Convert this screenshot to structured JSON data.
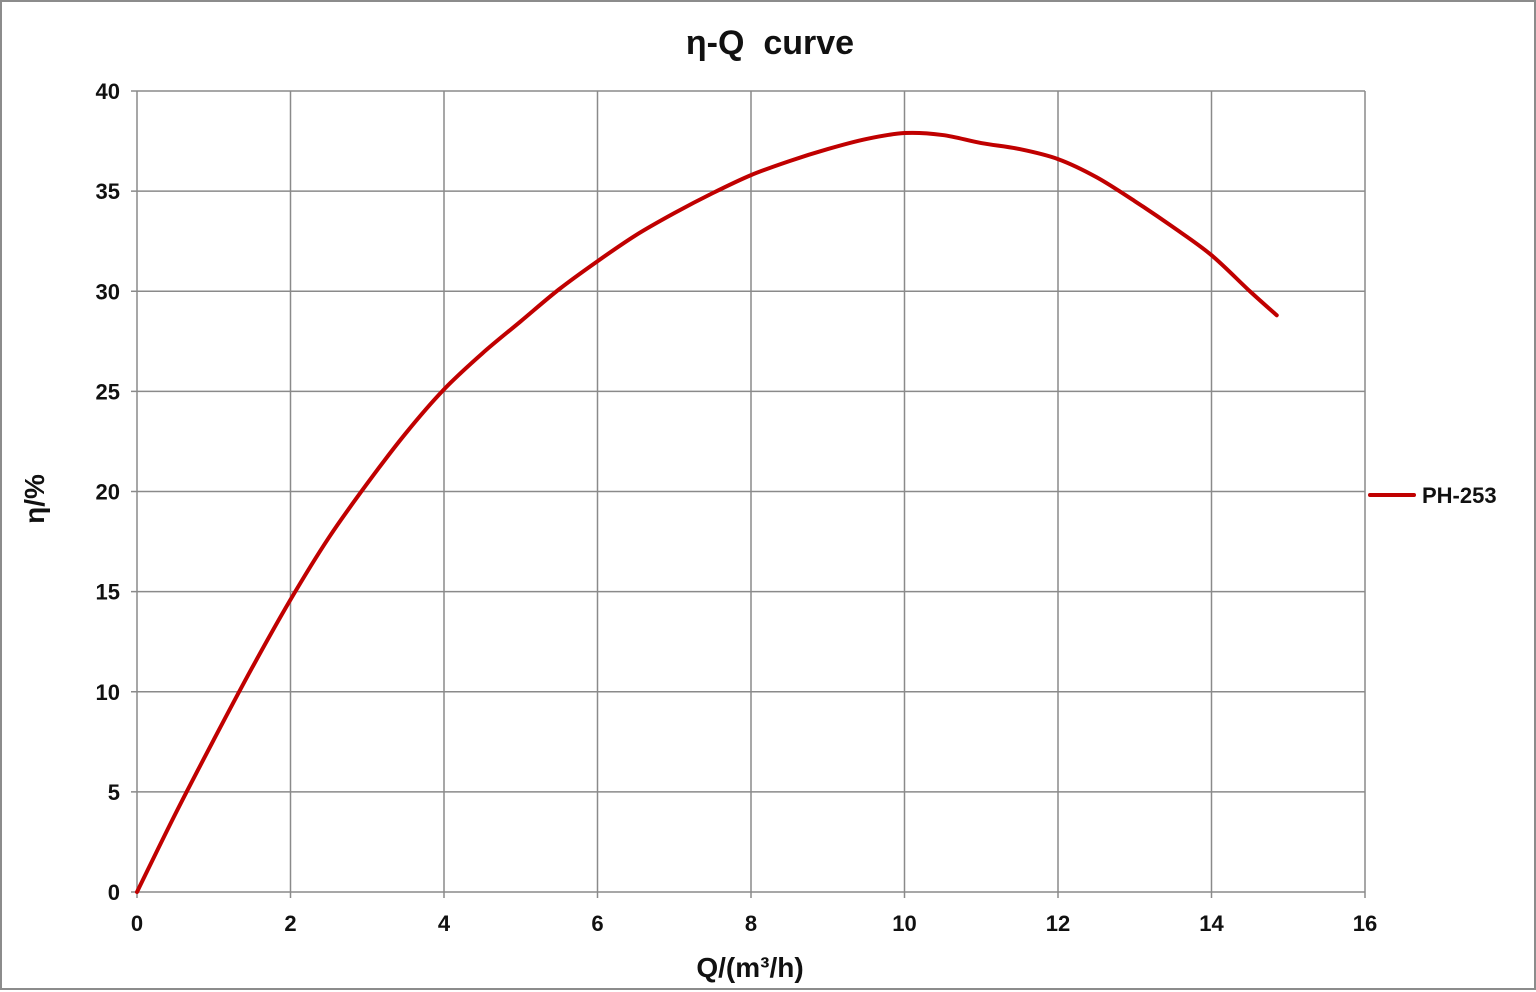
{
  "chart_data": {
    "type": "line",
    "title": "η-Q  curve",
    "xlabel": "Q/(m³/h)",
    "ylabel": "η/%",
    "xlim": [
      0,
      16
    ],
    "ylim": [
      0,
      40
    ],
    "x_ticks": [
      "0",
      "2",
      "4",
      "6",
      "8",
      "10",
      "12",
      "14",
      "16"
    ],
    "y_ticks": [
      "0",
      "5",
      "10",
      "15",
      "20",
      "25",
      "30",
      "35",
      "40"
    ],
    "grid": true,
    "legend_position": "right",
    "series": [
      {
        "name": "PH-253",
        "color": "#c00000",
        "x": [
          0,
          0.5,
          1,
          1.5,
          2,
          2.5,
          3,
          3.5,
          4,
          4.5,
          5,
          5.5,
          6,
          6.5,
          7,
          7.5,
          8,
          8.5,
          9,
          9.5,
          10,
          10.5,
          11,
          11.5,
          12,
          12.5,
          13,
          13.5,
          14,
          14.5,
          14.85
        ],
        "y": [
          0,
          3.9,
          7.6,
          11.2,
          14.6,
          17.7,
          20.4,
          22.9,
          25.1,
          26.9,
          28.5,
          30.1,
          31.5,
          32.8,
          33.9,
          34.9,
          35.8,
          36.5,
          37.1,
          37.6,
          37.9,
          37.8,
          37.4,
          37.1,
          36.6,
          35.7,
          34.5,
          33.2,
          31.8,
          30.0,
          28.8
        ]
      }
    ]
  }
}
